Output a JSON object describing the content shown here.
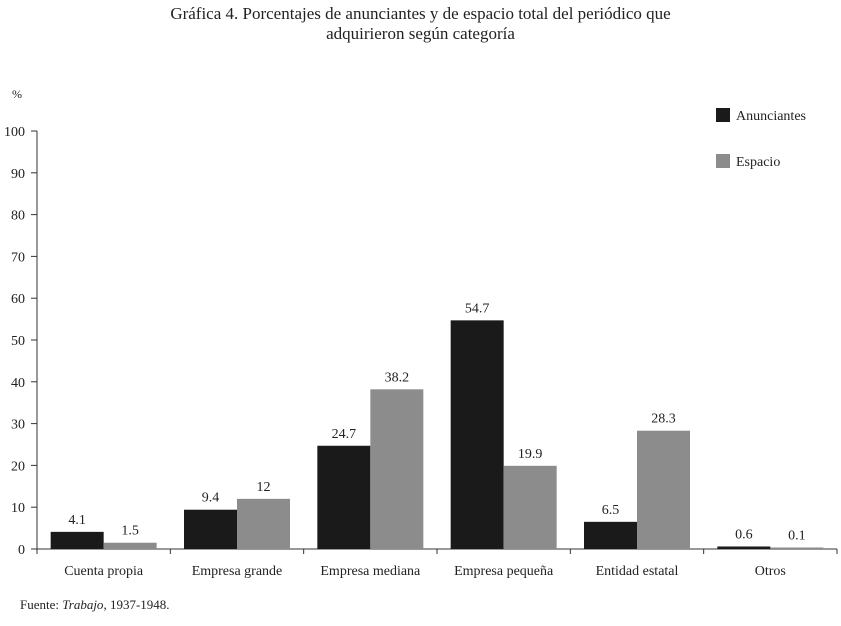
{
  "chart_data": {
    "type": "bar",
    "title_lines": [
      "Gráfica 4. Porcentajes de anunciantes y de espacio total del periódico que",
      "adquirieron según categoría"
    ],
    "ylabel": "%",
    "xlabel": "",
    "ylim": [
      0,
      100
    ],
    "yticks": [
      0,
      10,
      20,
      30,
      40,
      50,
      60,
      70,
      80,
      90,
      100
    ],
    "grid": false,
    "legend_position": "top-right",
    "categories": [
      "Cuenta propia",
      "Empresa grande",
      "Empresa mediana",
      "Empresa pequeña",
      "Entidad estatal",
      "Otros"
    ],
    "series": [
      {
        "name": "Anunciantes",
        "color": "#1a1a1a",
        "values": [
          4.1,
          9.4,
          24.7,
          54.7,
          6.5,
          0.6
        ],
        "labels": [
          "4.1",
          "9.4",
          "24.7",
          "54.7",
          "6.5",
          "0.6"
        ]
      },
      {
        "name": "Espacio",
        "color": "#8c8c8c",
        "values": [
          1.5,
          12,
          38.2,
          19.9,
          28.3,
          0.1
        ],
        "labels": [
          "1.5",
          "12",
          "38.2",
          "19.9",
          "28.3",
          "0.1"
        ]
      }
    ]
  },
  "source": {
    "prefix": "Fuente: ",
    "work": "Trabajo",
    "suffix": ", 1937-1948."
  }
}
